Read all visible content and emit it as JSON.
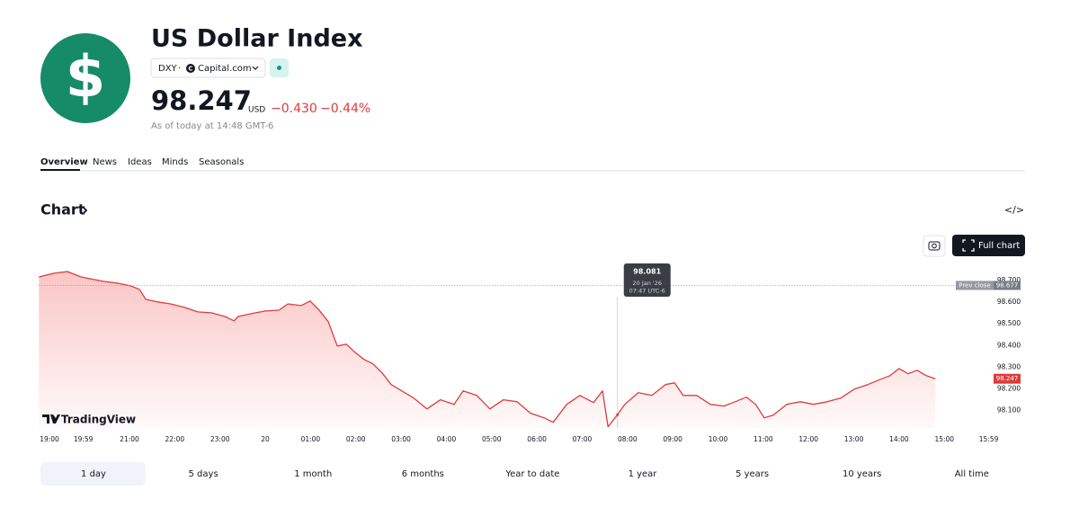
{
  "header": {
    "title": "US Dollar Index",
    "symbol": "DXY",
    "source": "Capital.com",
    "price": "98.247",
    "currency": "USD",
    "change": "−0.430",
    "change_pct": "−0.44%",
    "as_of": "As of today at 14:48 GMT-6"
  },
  "tabs": [
    "Overview",
    "News",
    "Ideas",
    "Minds",
    "Seasonals"
  ],
  "section_title": "Chart",
  "full_chart": "Full chart",
  "brand": "TradingView",
  "chart_data": {
    "type": "line",
    "color": "#e03b3b",
    "x": [
      0,
      0.33,
      0.63,
      0.93,
      1.13,
      1.42,
      1.72,
      2.02,
      2.22,
      2.36,
      2.62,
      2.91,
      3.21,
      3.51,
      3.81,
      4.11,
      4.31,
      4.4,
      4.7,
      5.0,
      5.3,
      5.5,
      5.79,
      5.99,
      6.19,
      6.39,
      6.59,
      6.79,
      6.98,
      7.18,
      7.38,
      7.58,
      7.78,
      8.08,
      8.28,
      8.57,
      8.87,
      9.17,
      9.37,
      9.67,
      9.96,
      10.26,
      10.56,
      10.86,
      11.16,
      11.36,
      11.66,
      11.95,
      12.25,
      12.45,
      12.57,
      12.78,
      12.94,
      13.24,
      13.54,
      13.84,
      14.04,
      14.23,
      14.53,
      14.83,
      15.13,
      15.33,
      15.63,
      15.83,
      16.02,
      16.22,
      16.52,
      16.82,
      17.11,
      17.41,
      17.71,
      18.01,
      18.31,
      18.6,
      18.8,
      19.0,
      19.2,
      19.4,
      19.6,
      19.8
    ],
    "values": [
      98.716,
      98.733,
      98.741,
      98.716,
      98.708,
      98.696,
      98.688,
      98.675,
      98.659,
      98.613,
      98.601,
      98.592,
      98.576,
      98.555,
      98.551,
      98.534,
      98.514,
      98.534,
      98.547,
      98.559,
      98.563,
      98.592,
      98.584,
      98.605,
      98.563,
      98.51,
      98.398,
      98.406,
      98.369,
      98.336,
      98.315,
      98.274,
      98.22,
      98.183,
      98.158,
      98.108,
      98.15,
      98.129,
      98.191,
      98.17,
      98.108,
      98.15,
      98.141,
      98.088,
      98.067,
      98.046,
      98.129,
      98.17,
      98.137,
      98.191,
      98.026,
      98.081,
      98.129,
      98.183,
      98.17,
      98.22,
      98.228,
      98.17,
      98.17,
      98.129,
      98.121,
      98.137,
      98.162,
      98.129,
      98.067,
      98.079,
      98.129,
      98.141,
      98.129,
      98.141,
      98.158,
      98.199,
      98.22,
      98.245,
      98.261,
      98.294,
      98.27,
      98.286,
      98.261,
      98.247
    ],
    "xlim": [
      0,
      21
    ],
    "ylim": [
      98.02,
      98.77
    ],
    "xticks": [
      {
        "value": 0,
        "label": "19:00"
      },
      {
        "value": 0.98,
        "label": "19:59"
      },
      {
        "value": 2,
        "label": "21:00"
      },
      {
        "value": 3,
        "label": "22:00"
      },
      {
        "value": 4,
        "label": "23:00"
      },
      {
        "value": 5,
        "label": "20"
      },
      {
        "value": 6,
        "label": "01:00"
      },
      {
        "value": 7,
        "label": "02:00"
      },
      {
        "value": 8,
        "label": "03:00"
      },
      {
        "value": 9,
        "label": "04:00"
      },
      {
        "value": 10,
        "label": "05:00"
      },
      {
        "value": 11,
        "label": "06:00"
      },
      {
        "value": 12,
        "label": "07:00"
      },
      {
        "value": 13,
        "label": "08:00"
      },
      {
        "value": 14,
        "label": "09:00"
      },
      {
        "value": 15,
        "label": "10:00"
      },
      {
        "value": 16,
        "label": "11:00"
      },
      {
        "value": 17,
        "label": "12:00"
      },
      {
        "value": 18,
        "label": "13:00"
      },
      {
        "value": 19,
        "label": "14:00"
      },
      {
        "value": 20,
        "label": "15:00"
      },
      {
        "value": 20.98,
        "label": "15:59"
      }
    ],
    "yticks": [
      {
        "value": 98.1,
        "label": "98.100"
      },
      {
        "value": 98.2,
        "label": "98.200"
      },
      {
        "value": 98.3,
        "label": "98.300"
      },
      {
        "value": 98.4,
        "label": "98.400"
      },
      {
        "value": 98.5,
        "label": "98.500"
      },
      {
        "value": 98.6,
        "label": "98.600"
      },
      {
        "value": 98.7,
        "label": "98.700"
      }
    ],
    "prev_close": {
      "label": "Prev close",
      "value": 98.677
    },
    "last_value": 98.247,
    "tooltip": {
      "value": 98.081,
      "date": "20 Jan '26",
      "time": "07:47 UTC-6"
    }
  },
  "ranges": [
    "1 day",
    "5 days",
    "1 month",
    "6 months",
    "Year to date",
    "1 year",
    "5 years",
    "10 years",
    "All time"
  ]
}
